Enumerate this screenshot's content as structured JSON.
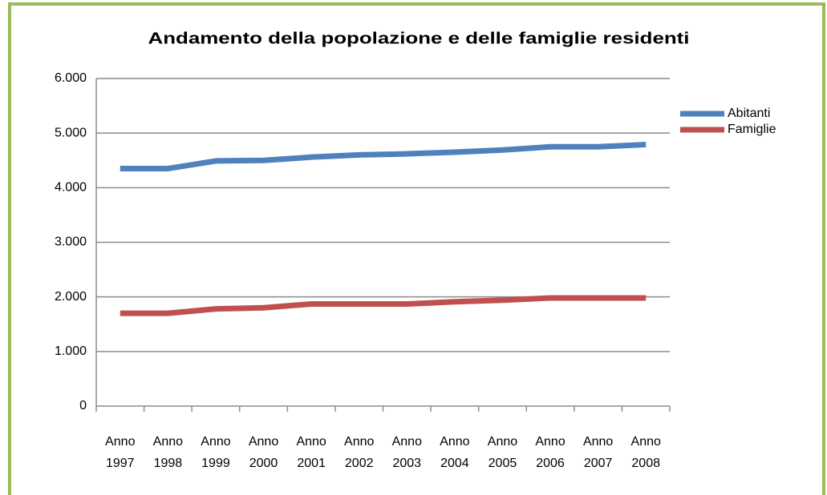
{
  "chart_data": {
    "type": "line",
    "title": "Andamento della popolazione e delle famiglie residenti",
    "categories": [
      "Anno 1997",
      "Anno 1998",
      "Anno 1999",
      "Anno 2000",
      "Anno 2001",
      "Anno 2002",
      "Anno 2003",
      "Anno 2004",
      "Anno 2005",
      "Anno 2006",
      "Anno 2007",
      "Anno 2008"
    ],
    "series": [
      {
        "name": "Abitanti",
        "color": "#4f81bd",
        "values": [
          4350,
          4350,
          4490,
          4500,
          4560,
          4600,
          4620,
          4650,
          4690,
          4750,
          4750,
          4790
        ]
      },
      {
        "name": "Famiglie",
        "color": "#c0504d",
        "values": [
          1700,
          1700,
          1780,
          1800,
          1870,
          1870,
          1870,
          1910,
          1940,
          1980,
          1980,
          1980
        ]
      }
    ],
    "ylim": [
      0,
      6000
    ],
    "yticks": [
      0,
      {
        "value": 1000,
        "label": "1.000"
      },
      {
        "value": 2000,
        "label": "2.000"
      },
      {
        "value": 3000,
        "label": "3.000"
      },
      {
        "value": 4000,
        "label": "4.000"
      },
      {
        "value": 5000,
        "label": "5.000"
      },
      {
        "value": 6000,
        "label": "6.000"
      }
    ],
    "grid": true,
    "legend": "right"
  }
}
